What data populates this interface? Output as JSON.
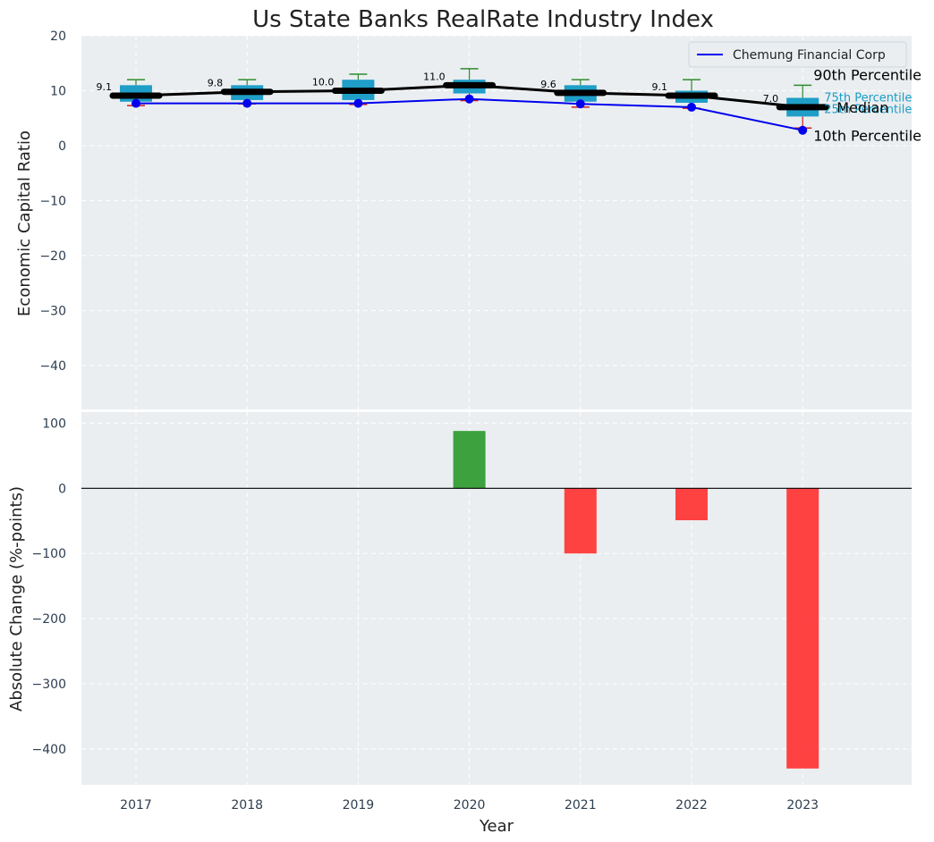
{
  "chart_data": [
    {
      "type": "box",
      "title": "Us State Banks RealRate Industry Index",
      "ylabel": "Economic Capital Ratio",
      "ylim": [
        -48,
        20
      ],
      "yticks": [
        20,
        10,
        0,
        -10,
        -20,
        -30,
        -40
      ],
      "ytick_labels": [
        "20",
        "10",
        "0",
        "−10",
        "−20",
        "−30",
        "−40"
      ],
      "categories": [
        "2017",
        "2018",
        "2019",
        "2020",
        "2021",
        "2022",
        "2023"
      ],
      "boxes": [
        {
          "p10": 7.3,
          "q1": 8.0,
          "median": 9.1,
          "q3": 11.0,
          "p90": 12.0
        },
        {
          "p10": 7.6,
          "q1": 8.3,
          "median": 9.8,
          "q3": 11.0,
          "p90": 12.0
        },
        {
          "p10": 7.5,
          "q1": 8.3,
          "median": 10.0,
          "q3": 12.0,
          "p90": 13.0
        },
        {
          "p10": 8.2,
          "q1": 9.5,
          "median": 11.0,
          "q3": 12.0,
          "p90": 14.0
        },
        {
          "p10": 7.0,
          "q1": 8.0,
          "median": 9.6,
          "q3": 11.0,
          "p90": 12.0
        },
        {
          "p10": 6.8,
          "q1": 7.8,
          "median": 9.1,
          "q3": 10.0,
          "p90": 12.0
        },
        {
          "p10": 3.2,
          "q1": 5.3,
          "median": 7.0,
          "q3": 8.7,
          "p90": 11.0
        }
      ],
      "median_labels": [
        "9.1",
        "9.8",
        "10.0",
        "11.0",
        "9.6",
        "9.1",
        "7.0"
      ],
      "series": [
        {
          "name": "Chemung Financial Corp",
          "values": [
            7.7,
            7.7,
            7.7,
            8.5,
            7.6,
            7.0,
            2.8
          ]
        }
      ],
      "legend": "top-right",
      "annotations": {
        "p90": "90th Percentile",
        "p75": "75th Percentile",
        "median": "Median",
        "p25": "25th Percentile",
        "p10": "10th Percentile"
      }
    },
    {
      "type": "bar",
      "xlabel": "Year",
      "ylabel": "Absolute Change (%-points)",
      "ylim": [
        -455,
        117
      ],
      "yticks": [
        100,
        0,
        -100,
        -200,
        -300,
        -400
      ],
      "ytick_labels": [
        "100",
        "0",
        "−100",
        "−200",
        "−300",
        "−400"
      ],
      "categories": [
        "2017",
        "2018",
        "2019",
        "2020",
        "2021",
        "2022",
        "2023"
      ],
      "values": [
        0,
        0,
        0,
        88,
        -100,
        -49,
        -430
      ]
    }
  ],
  "colors": {
    "background": "#eaeef0",
    "box_fill": "#1f9ec8",
    "whisker_top": "#2e8b2e",
    "whisker_bottom": "#d01d1d",
    "median_line": "#000000",
    "series_line": "#0000ee",
    "bar_positive": "#2e9a2e",
    "bar_negative": "#ff3333",
    "percentile_text": "#1a9ec8"
  }
}
